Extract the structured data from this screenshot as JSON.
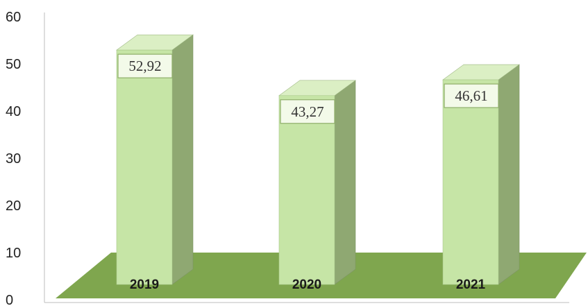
{
  "chart_data": {
    "type": "bar",
    "categories": [
      "2019",
      "2020",
      "2021"
    ],
    "values": [
      52.92,
      43.27,
      46.61
    ],
    "data_labels": [
      "52,92",
      "43,27",
      "46,61"
    ],
    "yticks": [
      "0",
      "10",
      "20",
      "30",
      "40",
      "50",
      "60"
    ],
    "ylim": [
      0,
      60
    ],
    "title": "",
    "xlabel": "",
    "ylabel": "",
    "grid": false,
    "legend": "none",
    "style": "3d-columns",
    "colors": {
      "bar_front": "#c6e5a6",
      "bar_side": "#8fa872",
      "bar_top": "#dbefc4",
      "floor": "#7fa64e",
      "label_box": "#f3fae9",
      "axis": "#bdbdbd"
    }
  }
}
